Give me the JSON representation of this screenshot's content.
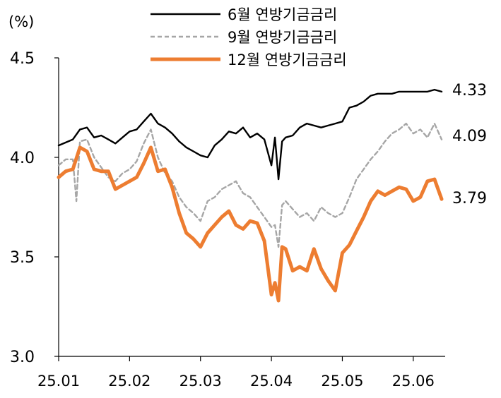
{
  "chart_data": {
    "type": "line",
    "unit_label": "(%)",
    "xlabel": "",
    "ylabel": "",
    "ylim": [
      3.0,
      4.5
    ],
    "y_ticks": [
      "3.0",
      "3.5",
      "4.0",
      "4.5"
    ],
    "x_ticks": [
      "25.01",
      "25.02",
      "25.03",
      "25.04",
      "25.05",
      "25.06"
    ],
    "x_range": [
      0,
      109
    ],
    "x_tick_positions": [
      0,
      20,
      40,
      60,
      80,
      100
    ],
    "grid": false,
    "legend_position": "top-center",
    "series": [
      {
        "name": "6월 연방기금금리",
        "color": "#000000",
        "dash": "solid",
        "end_label": "4.33",
        "x": [
          0,
          4,
          6,
          8,
          10,
          12,
          14,
          16,
          18,
          20,
          22,
          24,
          26,
          28,
          30,
          32,
          34,
          36,
          38,
          40,
          42,
          44,
          46,
          48,
          50,
          52,
          54,
          56,
          58,
          60,
          61,
          62,
          63,
          64,
          66,
          68,
          70,
          72,
          74,
          76,
          78,
          80,
          82,
          84,
          86,
          88,
          90,
          92,
          94,
          96,
          98,
          100,
          102,
          104,
          106,
          108
        ],
        "values": [
          4.06,
          4.09,
          4.14,
          4.15,
          4.1,
          4.11,
          4.09,
          4.07,
          4.1,
          4.13,
          4.14,
          4.18,
          4.22,
          4.17,
          4.15,
          4.12,
          4.08,
          4.05,
          4.03,
          4.01,
          4.0,
          4.06,
          4.09,
          4.13,
          4.12,
          4.15,
          4.1,
          4.12,
          4.09,
          3.96,
          4.1,
          3.89,
          4.08,
          4.1,
          4.11,
          4.15,
          4.17,
          4.16,
          4.15,
          4.16,
          4.17,
          4.18,
          4.25,
          4.26,
          4.28,
          4.31,
          4.32,
          4.32,
          4.32,
          4.33,
          4.33,
          4.33,
          4.33,
          4.33,
          4.34,
          4.33
        ]
      },
      {
        "name": "9월 연방기금금리",
        "color": "#a6a6a6",
        "dash": "dashed",
        "end_label": "4.09",
        "x": [
          0,
          2,
          4,
          5,
          6,
          8,
          10,
          12,
          14,
          16,
          18,
          20,
          22,
          24,
          26,
          28,
          30,
          32,
          34,
          36,
          38,
          40,
          42,
          44,
          46,
          48,
          50,
          52,
          54,
          56,
          58,
          60,
          61,
          62,
          63,
          64,
          66,
          68,
          70,
          72,
          74,
          76,
          78,
          80,
          82,
          84,
          86,
          88,
          90,
          92,
          94,
          96,
          98,
          100,
          102,
          104,
          106,
          108
        ],
        "values": [
          3.96,
          3.99,
          3.99,
          3.78,
          4.08,
          4.09,
          4.0,
          3.95,
          3.9,
          3.88,
          3.92,
          3.94,
          3.98,
          4.07,
          4.14,
          4.0,
          3.92,
          3.88,
          3.8,
          3.75,
          3.72,
          3.68,
          3.78,
          3.8,
          3.84,
          3.86,
          3.88,
          3.82,
          3.8,
          3.75,
          3.7,
          3.65,
          3.66,
          3.55,
          3.76,
          3.78,
          3.74,
          3.7,
          3.72,
          3.68,
          3.75,
          3.72,
          3.7,
          3.72,
          3.8,
          3.89,
          3.94,
          3.99,
          4.03,
          4.08,
          4.12,
          4.14,
          4.17,
          4.12,
          4.14,
          4.1,
          4.17,
          4.09
        ]
      },
      {
        "name": "12월 연방기금금리",
        "color": "#ed7d31",
        "dash": "solid",
        "end_label": "3.79",
        "x": [
          0,
          2,
          4,
          6,
          8,
          10,
          12,
          14,
          16,
          18,
          20,
          22,
          24,
          26,
          28,
          30,
          32,
          34,
          36,
          38,
          40,
          42,
          44,
          46,
          48,
          50,
          52,
          54,
          56,
          58,
          60,
          61,
          62,
          63,
          64,
          66,
          68,
          70,
          72,
          74,
          76,
          78,
          80,
          82,
          84,
          86,
          88,
          90,
          92,
          94,
          96,
          98,
          100,
          102,
          104,
          106,
          108
        ],
        "values": [
          3.9,
          3.93,
          3.94,
          4.05,
          4.03,
          3.94,
          3.93,
          3.93,
          3.84,
          3.86,
          3.88,
          3.9,
          3.97,
          4.05,
          3.93,
          3.94,
          3.85,
          3.72,
          3.62,
          3.59,
          3.55,
          3.62,
          3.66,
          3.7,
          3.73,
          3.66,
          3.64,
          3.68,
          3.67,
          3.58,
          3.31,
          3.37,
          3.28,
          3.55,
          3.54,
          3.43,
          3.45,
          3.43,
          3.54,
          3.44,
          3.38,
          3.33,
          3.52,
          3.56,
          3.63,
          3.7,
          3.78,
          3.83,
          3.81,
          3.83,
          3.85,
          3.84,
          3.78,
          3.8,
          3.88,
          3.89,
          3.79
        ]
      }
    ]
  }
}
